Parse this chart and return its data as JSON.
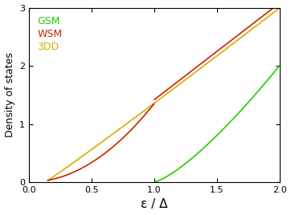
{
  "xlabel": "ε / Δ",
  "ylabel": "Density of states",
  "xlim": [
    0,
    2
  ],
  "ylim": [
    0,
    3
  ],
  "xticks": [
    0,
    0.5,
    1.0,
    1.5,
    2.0
  ],
  "yticks": [
    0,
    1,
    2,
    3
  ],
  "legend_labels": [
    "GSM",
    "WSM",
    "3DD"
  ],
  "legend_colors": [
    "#22cc00",
    "#cc2200",
    "#ddaa00"
  ],
  "background_color": "#ffffff",
  "linewidth": 1.2,
  "figsize": [
    3.62,
    2.68
  ],
  "dpi": 100
}
